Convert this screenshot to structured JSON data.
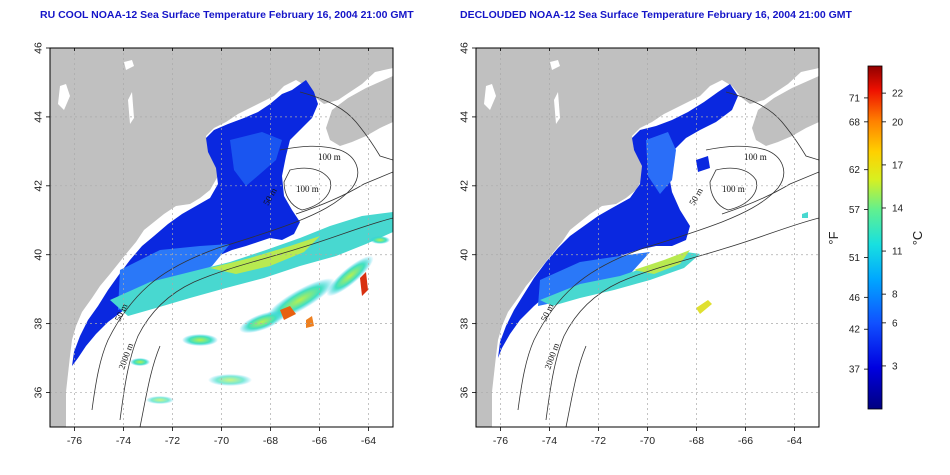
{
  "panels": [
    {
      "id": "left",
      "title": "RU COOL NOAA-12 Sea Surface Temperature February 16, 2004 21:00 GMT",
      "contour_labels": [
        "100 m",
        "100 m",
        "50 m",
        "50 m",
        "2000 m"
      ]
    },
    {
      "id": "right",
      "title": "DECLOUDED NOAA-12 Sea Surface Temperature February 16, 2004 21:00 GMT",
      "contour_labels": [
        "100 m",
        "100 m",
        "50 m",
        "50 m",
        "2000 m"
      ]
    }
  ],
  "axes": {
    "lon_ticks": [
      "-76",
      "-74",
      "-72",
      "-70",
      "-68",
      "-66",
      "-64"
    ],
    "lat_ticks": [
      "36",
      "38",
      "40",
      "42",
      "44",
      "46"
    ],
    "lon_range": [
      -77,
      -63
    ],
    "lat_range": [
      35,
      46
    ]
  },
  "colorbar": {
    "fahrenheit_ticks": [
      "71",
      "68",
      "62",
      "57",
      "51",
      "46",
      "42",
      "37"
    ],
    "celsius_ticks": [
      "22",
      "20",
      "17",
      "14",
      "11",
      "8",
      "6",
      "3"
    ],
    "unit_left": "°F",
    "unit_right": "°C"
  },
  "colors": {
    "title": "#1515c8",
    "land": "#c0c0c0",
    "ocean_no_data": "#ffffff"
  }
}
